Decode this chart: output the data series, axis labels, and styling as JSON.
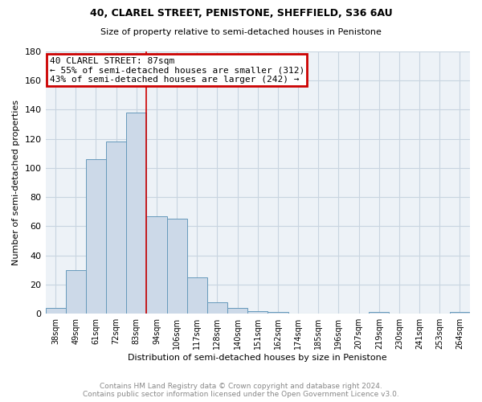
{
  "title": "40, CLAREL STREET, PENISTONE, SHEFFIELD, S36 6AU",
  "subtitle": "Size of property relative to semi-detached houses in Penistone",
  "xlabel": "Distribution of semi-detached houses by size in Penistone",
  "ylabel": "Number of semi-detached properties",
  "footnote1": "Contains HM Land Registry data © Crown copyright and database right 2024.",
  "footnote2": "Contains public sector information licensed under the Open Government Licence v3.0.",
  "bar_labels": [
    "38sqm",
    "49sqm",
    "61sqm",
    "72sqm",
    "83sqm",
    "94sqm",
    "106sqm",
    "117sqm",
    "128sqm",
    "140sqm",
    "151sqm",
    "162sqm",
    "174sqm",
    "185sqm",
    "196sqm",
    "207sqm",
    "219sqm",
    "230sqm",
    "241sqm",
    "253sqm",
    "264sqm"
  ],
  "bar_values": [
    4,
    30,
    106,
    118,
    138,
    67,
    65,
    25,
    8,
    4,
    2,
    1,
    0,
    0,
    0,
    0,
    1,
    0,
    0,
    0,
    1
  ],
  "bar_color": "#ccd9e8",
  "bar_edge_color": "#6699bb",
  "ylim": [
    0,
    180
  ],
  "yticks": [
    0,
    20,
    40,
    60,
    80,
    100,
    120,
    140,
    160,
    180
  ],
  "vline_x": 4.5,
  "annotation_title": "40 CLAREL STREET: 87sqm",
  "annotation_line1": "← 55% of semi-detached houses are smaller (312)",
  "annotation_line2": "43% of semi-detached houses are larger (242) →",
  "vline_color": "#cc0000",
  "annotation_box_color": "#cc0000",
  "grid_color": "#c8d4e0",
  "background_color": "#edf2f7",
  "title_fontsize": 9,
  "subtitle_fontsize": 8,
  "ylabel_fontsize": 8,
  "xlabel_fontsize": 8,
  "ytick_fontsize": 8,
  "xtick_fontsize": 7,
  "annotation_fontsize": 8,
  "footnote_fontsize": 6.5
}
